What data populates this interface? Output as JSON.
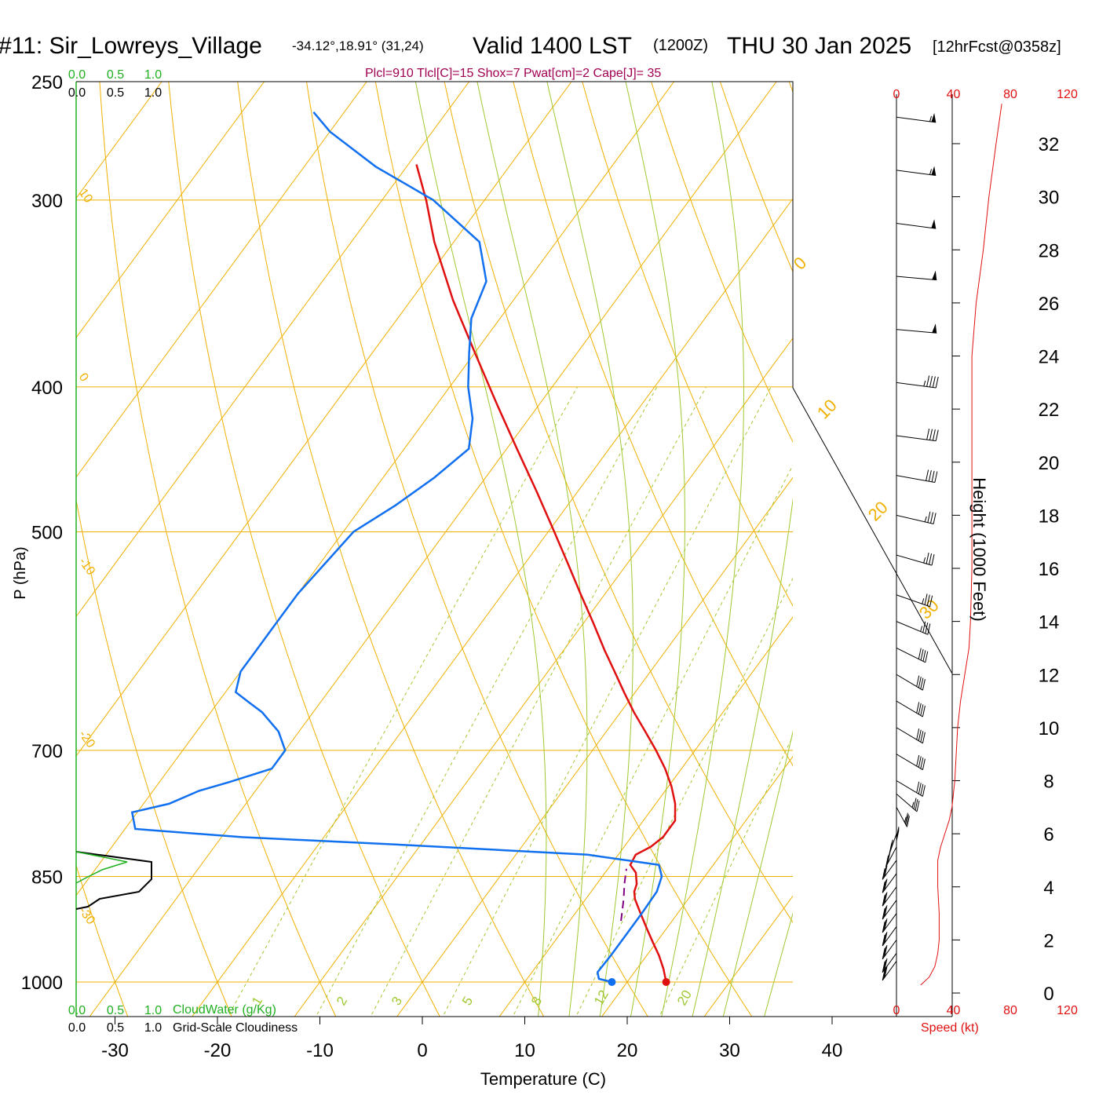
{
  "header": {
    "station": "#11: Sir_Lowreys_Village",
    "coords": "-34.12°,18.91° (31,24)",
    "valid": "Valid 1400 LST",
    "zulu": "(1200Z)",
    "date": "THU 30 Jan 2025",
    "forecast": "[12hrFcst@0358z]",
    "indices": "Plcl=910 Tlcl[C]=15 Shox=7 Pwat[cm]=2 Cape[J]= 35"
  },
  "cloud_panel": {
    "top_green_ticks": [
      "0.0",
      "0.5",
      "1.0"
    ],
    "top_black_ticks": [
      "0.0",
      "0.5",
      "1.0"
    ],
    "bottom_green_ticks": [
      "0.0",
      "0.5",
      "1.0"
    ],
    "bottom_black_ticks": [
      "0.0",
      "0.5",
      "1.0"
    ],
    "cloudwater_label": "CloudWater (g/Kg)",
    "cloudiness_label": "Grid-Scale Cloudiness"
  },
  "colors": {
    "isotherm": "#f0b000",
    "dry_adiabat": "#f0b000",
    "moist_adiabat": "#a0c830",
    "mixing_ratio": "#a0c830",
    "temperature": "#e01010",
    "dewpoint": "#1070f0",
    "parcel": "#800080",
    "cloudwater": "#20b020",
    "speed": "#e01010",
    "indices": "#a00050"
  },
  "speed_panel": {
    "ticks": [
      "0",
      "40",
      "80",
      "120"
    ],
    "label": "Speed (kt)"
  },
  "chart_data": {
    "type": "skew-t",
    "xlabel": "Temperature (C)",
    "ylabel": "P (hPa)",
    "y2label": "Height (1000 Feet)",
    "x_ticks": [
      -30,
      -20,
      -10,
      0,
      10,
      20,
      30,
      40
    ],
    "pressure_ticks": [
      250,
      300,
      400,
      500,
      700,
      850,
      1000
    ],
    "height_ticks": [
      0,
      2,
      4,
      6,
      8,
      10,
      12,
      14,
      16,
      18,
      20,
      22,
      24,
      26,
      28,
      30,
      32
    ],
    "isotherm_labels": [
      -30,
      -20,
      -10,
      0,
      10,
      20,
      30
    ],
    "moist_labels": [
      0,
      10,
      20,
      30
    ],
    "mixing_ratio_labels": [
      "1",
      "2",
      "3",
      "5",
      "8",
      "12",
      "20"
    ],
    "mixing_ratio_values": [
      1,
      2,
      3,
      5,
      8,
      12,
      20
    ],
    "moist_adiabat_thetas": [
      14,
      17,
      20,
      23,
      26,
      29,
      32,
      36,
      40,
      45,
      50
    ],
    "dry_adiabat_thetas_c": [
      -30,
      -20,
      -10,
      0,
      10,
      20,
      30,
      40,
      50,
      60,
      70,
      80,
      90,
      100,
      110,
      120
    ],
    "temperature": {
      "p": [
        1000,
        980,
        960,
        940,
        920,
        900,
        880,
        870,
        860,
        845,
        835,
        822,
        812,
        800,
        780,
        760,
        740,
        720,
        700,
        680,
        660,
        640,
        620,
        600,
        575,
        550,
        525,
        500,
        470,
        440,
        410,
        380,
        350,
        320,
        300,
        284
      ],
      "t": [
        23.8,
        22.6,
        21.2,
        19.6,
        18.0,
        16.4,
        14.8,
        14.2,
        13.9,
        13.0,
        11.9,
        11.7,
        12.6,
        13.1,
        13.1,
        11.9,
        10.3,
        8.4,
        6.2,
        3.8,
        1.3,
        -1.1,
        -3.5,
        -6.0,
        -9.1,
        -12.4,
        -15.8,
        -19.4,
        -24.0,
        -29.0,
        -34.3,
        -39.9,
        -45.9,
        -51.9,
        -55.7,
        -59.2
      ]
    },
    "dewpoint": {
      "p": [
        1000,
        995,
        985,
        960,
        930,
        900,
        870,
        850,
        835,
        822,
        810,
        800,
        790,
        770,
        760,
        745,
        735,
        720,
        700,
        680,
        660,
        650,
        640,
        620,
        600,
        575,
        550,
        500,
        480,
        460,
        440,
        420,
        400,
        380,
        360,
        340,
        320,
        300,
        285,
        270,
        262
      ],
      "td": [
        18.5,
        17.0,
        16.4,
        16.5,
        16.5,
        16.5,
        16.4,
        15.8,
        14.7,
        7.0,
        -11.0,
        -28.0,
        -39.0,
        -40.5,
        -37.5,
        -35.5,
        -33.2,
        -30.0,
        -30.0,
        -32.0,
        -35.0,
        -37.0,
        -39.0,
        -40.0,
        -40.0,
        -40.0,
        -40.0,
        -39.0,
        -36.8,
        -35.0,
        -33.7,
        -35.5,
        -38.2,
        -40.5,
        -42.8,
        -44.0,
        -47.5,
        -55.0,
        -63.0,
        -70.0,
        -73.0
      ]
    },
    "parcel": {
      "p": [
        910,
        880,
        860,
        840
      ],
      "t": [
        15.0,
        13.7,
        12.7,
        11.8
      ]
    },
    "surface_points": {
      "temperature": 23.8,
      "dewpoint": 18.5,
      "p": 1000
    },
    "wind_speed_profile": {
      "height_kft": [
        0.3,
        0.6,
        1,
        1.5,
        2,
        3,
        4,
        5,
        5.5,
        6,
        6.5,
        7,
        8,
        9,
        10,
        11,
        12,
        13,
        14,
        16,
        18,
        20,
        22,
        24,
        26,
        28,
        30,
        32,
        33.5
      ],
      "speed_kt": [
        17,
        23,
        27,
        29,
        30,
        30,
        29,
        29,
        31,
        34,
        37,
        39,
        41,
        42,
        43,
        45,
        48,
        51,
        52,
        53,
        53,
        53,
        53,
        53,
        56,
        61,
        65,
        70,
        74
      ]
    },
    "wind_barbs": {
      "height_kft": [
        33,
        31,
        29,
        27,
        25,
        23,
        21,
        19.5,
        18,
        16.5,
        15,
        14,
        13,
        12,
        11,
        10,
        9,
        8,
        7.5,
        7,
        6.5,
        6,
        5.5,
        5,
        4.5,
        4,
        3.5,
        3,
        2.5,
        2,
        1.5,
        1.2
      ],
      "dir_deg": [
        285,
        285,
        285,
        280,
        280,
        285,
        285,
        290,
        295,
        300,
        305,
        310,
        315,
        320,
        320,
        320,
        320,
        320,
        330,
        345,
        0,
        10,
        15,
        20,
        20,
        20,
        20,
        20,
        20,
        20,
        20,
        20
      ],
      "speed_kt": [
        55,
        55,
        50,
        50,
        50,
        45,
        40,
        40,
        35,
        35,
        35,
        35,
        40,
        40,
        40,
        40,
        40,
        40,
        35,
        35,
        30,
        30,
        30,
        30,
        30,
        30,
        30,
        30,
        30,
        30,
        30,
        30
      ]
    }
  }
}
